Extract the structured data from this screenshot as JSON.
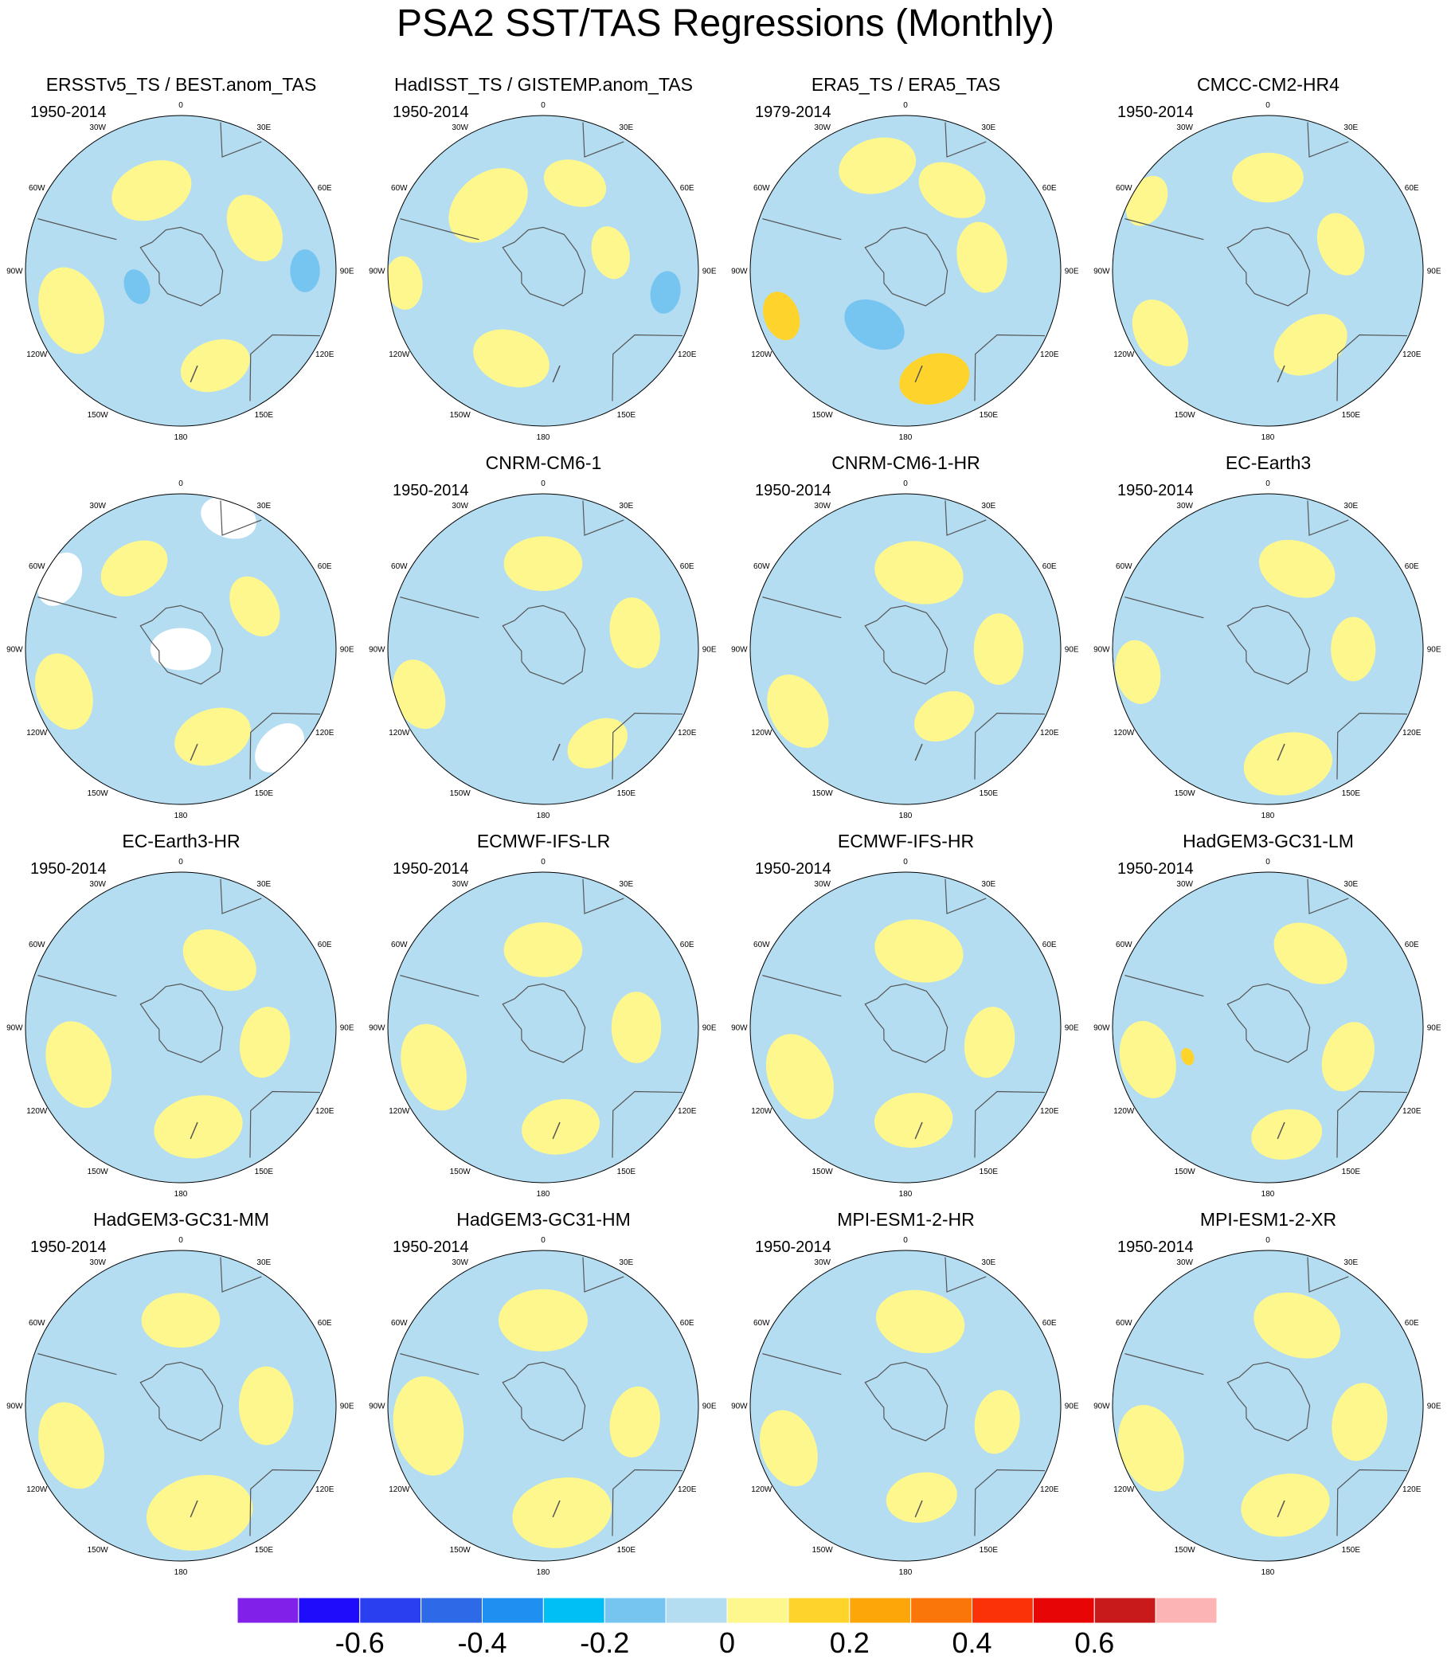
{
  "title": "PSA2 SST/TAS Regressions (Monthly)",
  "colors": {
    "ocean_neg": "#b4ddf2",
    "ocean_pos": "#fdf78e",
    "strong_neg": "#76c5f0",
    "strong_pos": "#fed42c",
    "missing": "#ffffff",
    "coast": "#555555"
  },
  "longitude_labels": [
    "0",
    "30E",
    "60E",
    "90E",
    "120E",
    "150E",
    "180",
    "150W",
    "120W",
    "90W",
    "60W",
    "30W"
  ],
  "panels": [
    {
      "title": "ERSSTv5_TS / BEST.anom_TAS",
      "period": "1950-2014",
      "base": "neg",
      "blobs": [
        {
          "lon": -20,
          "r": 0.55,
          "size": 0.23,
          "s": "pos"
        },
        {
          "lon": 60,
          "r": 0.55,
          "size": 0.2,
          "s": "pos"
        },
        {
          "lon": -110,
          "r": 0.75,
          "size": 0.25,
          "s": "pos"
        },
        {
          "lon": 160,
          "r": 0.65,
          "size": 0.2,
          "s": "pos"
        },
        {
          "lon": 90,
          "r": 0.8,
          "size": 0.12,
          "s": "sneg"
        },
        {
          "lon": -110,
          "r": 0.3,
          "size": 0.1,
          "s": "sneg"
        }
      ]
    },
    {
      "title": "HadISST_TS / GISTEMP.anom_TAS",
      "period": "1950-2014",
      "base": "neg",
      "blobs": [
        {
          "lon": -40,
          "r": 0.55,
          "size": 0.25,
          "s": "pos"
        },
        {
          "lon": 20,
          "r": 0.6,
          "size": 0.18,
          "s": "pos"
        },
        {
          "lon": -95,
          "r": 0.9,
          "size": 0.15,
          "s": "pos"
        },
        {
          "lon": -160,
          "r": 0.6,
          "size": 0.22,
          "s": "pos"
        },
        {
          "lon": 75,
          "r": 0.45,
          "size": 0.15,
          "s": "pos"
        },
        {
          "lon": 100,
          "r": 0.8,
          "size": 0.12,
          "s": "sneg"
        }
      ]
    },
    {
      "title": "ERA5_TS / ERA5_TAS",
      "period": "1979-2014",
      "base": "neg",
      "blobs": [
        {
          "lon": -15,
          "r": 0.7,
          "size": 0.22,
          "s": "pos"
        },
        {
          "lon": 30,
          "r": 0.6,
          "size": 0.2,
          "s": "pos"
        },
        {
          "lon": 165,
          "r": 0.72,
          "size": 0.2,
          "s": "spos"
        },
        {
          "lon": -110,
          "r": 0.85,
          "size": 0.14,
          "s": "spos"
        },
        {
          "lon": 80,
          "r": 0.5,
          "size": 0.2,
          "s": "pos"
        },
        {
          "lon": -150,
          "r": 0.4,
          "size": 0.18,
          "s": "sneg"
        }
      ]
    },
    {
      "title": "CMCC-CM2-HR4",
      "period": "1950-2014",
      "base": "neg",
      "blobs": [
        {
          "lon": 0,
          "r": 0.6,
          "size": 0.2,
          "s": "pos"
        },
        {
          "lon": 70,
          "r": 0.5,
          "size": 0.18,
          "s": "pos"
        },
        {
          "lon": 150,
          "r": 0.55,
          "size": 0.22,
          "s": "pos"
        },
        {
          "lon": -120,
          "r": 0.8,
          "size": 0.2,
          "s": "pos"
        },
        {
          "lon": -60,
          "r": 0.9,
          "size": 0.15,
          "s": "pos"
        }
      ]
    },
    {
      "title": "",
      "period": "",
      "base": "neg",
      "blobs": [
        {
          "lon": -30,
          "r": 0.6,
          "size": 0.2,
          "s": "pos"
        },
        {
          "lon": 60,
          "r": 0.55,
          "size": 0.18,
          "s": "pos"
        },
        {
          "lon": 160,
          "r": 0.6,
          "size": 0.22,
          "s": "pos"
        },
        {
          "lon": -110,
          "r": 0.8,
          "size": 0.22,
          "s": "pos"
        },
        {
          "lon": 0,
          "r": 0.0,
          "size": 0.17,
          "s": "miss"
        },
        {
          "lon": 20,
          "r": 0.9,
          "size": 0.16,
          "s": "miss"
        },
        {
          "lon": 135,
          "r": 0.9,
          "size": 0.16,
          "s": "miss"
        },
        {
          "lon": -60,
          "r": 0.9,
          "size": 0.16,
          "s": "miss"
        }
      ]
    },
    {
      "title": "CNRM-CM6-1",
      "period": "1950-2014",
      "base": "neg",
      "blobs": [
        {
          "lon": 0,
          "r": 0.55,
          "size": 0.22,
          "s": "pos"
        },
        {
          "lon": 80,
          "r": 0.6,
          "size": 0.2,
          "s": "pos"
        },
        {
          "lon": 150,
          "r": 0.7,
          "size": 0.18,
          "s": "pos"
        },
        {
          "lon": -110,
          "r": 0.85,
          "size": 0.2,
          "s": "pos"
        }
      ]
    },
    {
      "title": "CNRM-CM6-1-HR",
      "period": "1950-2014",
      "base": "neg",
      "blobs": [
        {
          "lon": 10,
          "r": 0.5,
          "size": 0.25,
          "s": "pos"
        },
        {
          "lon": 90,
          "r": 0.6,
          "size": 0.2,
          "s": "pos"
        },
        {
          "lon": 150,
          "r": 0.5,
          "size": 0.18,
          "s": "pos"
        },
        {
          "lon": -120,
          "r": 0.8,
          "size": 0.22,
          "s": "pos"
        }
      ]
    },
    {
      "title": "EC-Earth3",
      "period": "1950-2014",
      "base": "neg",
      "blobs": [
        {
          "lon": 20,
          "r": 0.55,
          "size": 0.22,
          "s": "pos"
        },
        {
          "lon": 90,
          "r": 0.55,
          "size": 0.18,
          "s": "pos"
        },
        {
          "lon": 170,
          "r": 0.75,
          "size": 0.25,
          "s": "pos"
        },
        {
          "lon": -100,
          "r": 0.85,
          "size": 0.18,
          "s": "pos"
        }
      ]
    },
    {
      "title": "EC-Earth3-HR",
      "period": "1950-2014",
      "base": "neg",
      "blobs": [
        {
          "lon": 30,
          "r": 0.5,
          "size": 0.22,
          "s": "pos"
        },
        {
          "lon": 100,
          "r": 0.55,
          "size": 0.2,
          "s": "pos"
        },
        {
          "lon": 170,
          "r": 0.65,
          "size": 0.25,
          "s": "pos"
        },
        {
          "lon": -110,
          "r": 0.7,
          "size": 0.25,
          "s": "pos"
        }
      ]
    },
    {
      "title": "ECMWF-IFS-LR",
      "period": "1950-2014",
      "base": "neg",
      "blobs": [
        {
          "lon": 0,
          "r": 0.5,
          "size": 0.22,
          "s": "pos"
        },
        {
          "lon": 90,
          "r": 0.6,
          "size": 0.2,
          "s": "pos"
        },
        {
          "lon": 170,
          "r": 0.65,
          "size": 0.22,
          "s": "pos"
        },
        {
          "lon": -110,
          "r": 0.75,
          "size": 0.25,
          "s": "pos"
        }
      ]
    },
    {
      "title": "ECMWF-IFS-HR",
      "period": "1950-2014",
      "base": "neg",
      "blobs": [
        {
          "lon": 10,
          "r": 0.5,
          "size": 0.25,
          "s": "pos"
        },
        {
          "lon": 100,
          "r": 0.55,
          "size": 0.2,
          "s": "pos"
        },
        {
          "lon": 175,
          "r": 0.6,
          "size": 0.22,
          "s": "pos"
        },
        {
          "lon": -115,
          "r": 0.75,
          "size": 0.25,
          "s": "pos"
        }
      ]
    },
    {
      "title": "HadGEM3-GC31-LM",
      "period": "1950-2014",
      "base": "neg",
      "blobs": [
        {
          "lon": 30,
          "r": 0.55,
          "size": 0.22,
          "s": "pos"
        },
        {
          "lon": 110,
          "r": 0.55,
          "size": 0.2,
          "s": "pos"
        },
        {
          "lon": 170,
          "r": 0.7,
          "size": 0.2,
          "s": "pos"
        },
        {
          "lon": -105,
          "r": 0.8,
          "size": 0.22,
          "s": "pos"
        },
        {
          "lon": -110,
          "r": 0.55,
          "size": 0.05,
          "s": "spos"
        }
      ]
    },
    {
      "title": "HadGEM3-GC31-MM",
      "period": "1950-2014",
      "base": "neg",
      "blobs": [
        {
          "lon": 0,
          "r": 0.55,
          "size": 0.22,
          "s": "pos"
        },
        {
          "lon": 90,
          "r": 0.55,
          "size": 0.22,
          "s": "pos"
        },
        {
          "lon": 170,
          "r": 0.7,
          "size": 0.3,
          "s": "pos"
        },
        {
          "lon": -110,
          "r": 0.75,
          "size": 0.25,
          "s": "pos"
        }
      ]
    },
    {
      "title": "HadGEM3-GC31-HM",
      "period": "1950-2014",
      "base": "neg",
      "blobs": [
        {
          "lon": 0,
          "r": 0.55,
          "size": 0.25,
          "s": "pos"
        },
        {
          "lon": 100,
          "r": 0.6,
          "size": 0.2,
          "s": "pos"
        },
        {
          "lon": 170,
          "r": 0.7,
          "size": 0.28,
          "s": "pos"
        },
        {
          "lon": -100,
          "r": 0.75,
          "size": 0.28,
          "s": "pos"
        }
      ]
    },
    {
      "title": "MPI-ESM1-2-HR",
      "period": "1950-2014",
      "base": "neg",
      "blobs": [
        {
          "lon": 10,
          "r": 0.55,
          "size": 0.25,
          "s": "pos"
        },
        {
          "lon": 100,
          "r": 0.6,
          "size": 0.18,
          "s": "pos"
        },
        {
          "lon": 170,
          "r": 0.6,
          "size": 0.2,
          "s": "pos"
        },
        {
          "lon": -110,
          "r": 0.8,
          "size": 0.22,
          "s": "pos"
        }
      ]
    },
    {
      "title": "MPI-ESM1-2-XR",
      "period": "1950-2014",
      "base": "neg",
      "blobs": [
        {
          "lon": 20,
          "r": 0.55,
          "size": 0.25,
          "s": "pos"
        },
        {
          "lon": 100,
          "r": 0.6,
          "size": 0.22,
          "s": "pos"
        },
        {
          "lon": 170,
          "r": 0.65,
          "size": 0.25,
          "s": "pos"
        },
        {
          "lon": -110,
          "r": 0.8,
          "size": 0.25,
          "s": "pos"
        }
      ]
    }
  ],
  "colorbar": {
    "colors": [
      "#8020e8",
      "#1e0cfa",
      "#2a40f0",
      "#2c6ae8",
      "#2090f0",
      "#00bff5",
      "#76c5f0",
      "#b4ddf2",
      "#fdf78e",
      "#fed42c",
      "#fca609",
      "#fb7608",
      "#fb3208",
      "#e80505",
      "#c81a1a",
      "#fdb4b4"
    ],
    "labels": [
      "-0.6",
      "-0.4",
      "-0.2",
      "0",
      "0.2",
      "0.4",
      "0.6"
    ],
    "label_values": [
      -0.6,
      -0.4,
      -0.2,
      0,
      0.2,
      0.4,
      0.6
    ],
    "min": -0.8,
    "max": 0.8
  }
}
